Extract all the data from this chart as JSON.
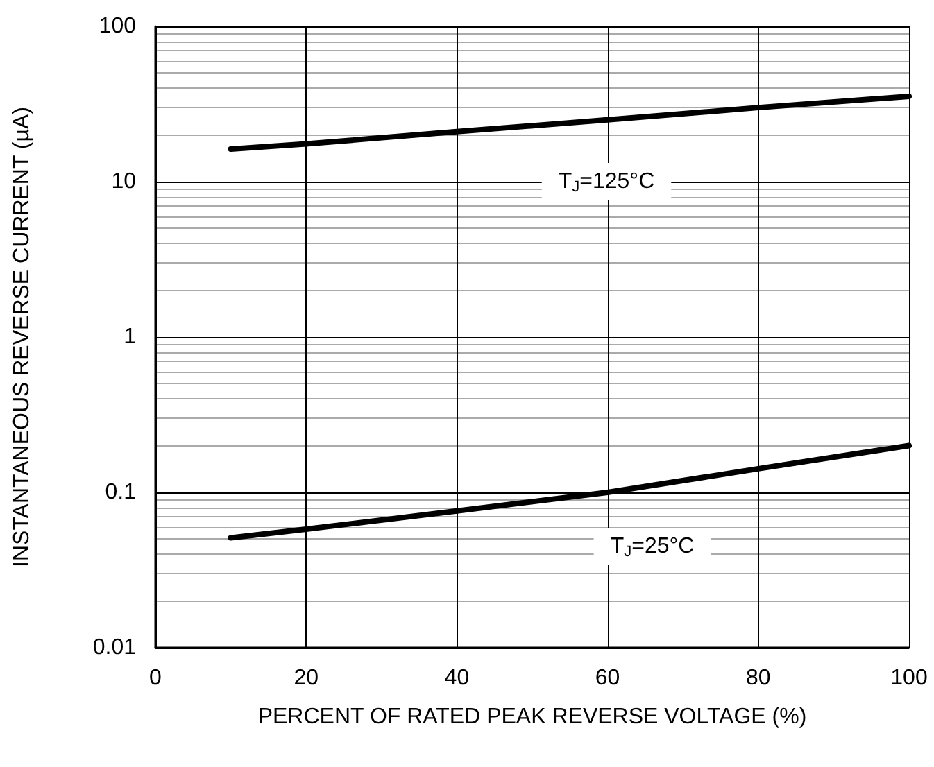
{
  "chart_data": {
    "type": "line",
    "xlabel": "PERCENT OF RATED PEAK REVERSE VOLTAGE (%)",
    "ylabel": "INSTANTANEOUS REVERSE CURRENT (µA)",
    "x": [
      10,
      20,
      40,
      60,
      80,
      100
    ],
    "series": [
      {
        "color": "#000000",
        "values": [
          16.2,
          17.5,
          21,
          25,
          30,
          35.4
        ]
      },
      {
        "color": "#000000",
        "values": [
          0.051,
          0.058,
          0.076,
          0.1,
          0.142,
          0.2
        ]
      }
    ],
    "annotations": [
      "T$_{J}$=125°C",
      "T$_{J}$=25°C"
    ],
    "xlim": [
      0,
      100
    ],
    "xticks": [
      0,
      20,
      40,
      60,
      80,
      100
    ],
    "ylim": [
      0.01,
      100
    ],
    "yticks": [
      0.01,
      0.1,
      1,
      10,
      100
    ],
    "log": "y",
    "grid": true,
    "marker": "none",
    "line_style": "solid"
  }
}
